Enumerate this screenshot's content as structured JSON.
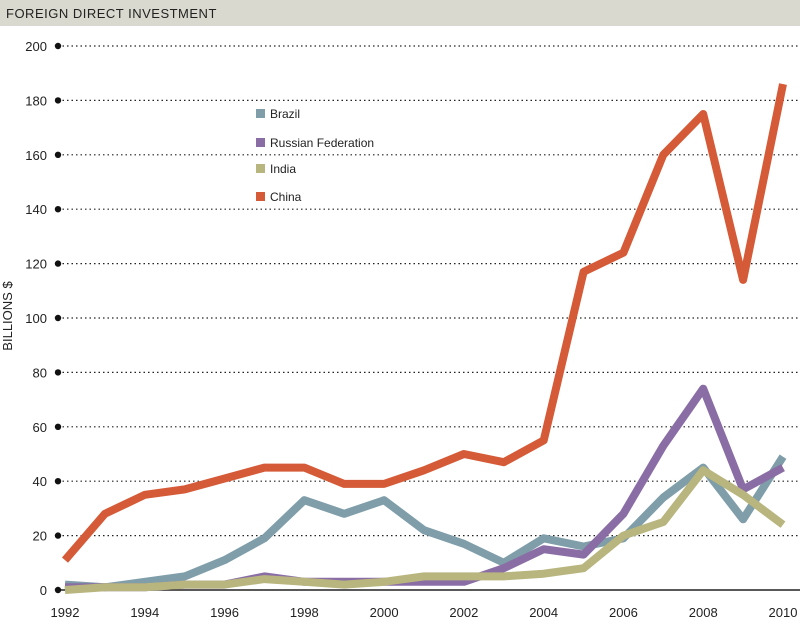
{
  "header": {
    "title": "FOREIGN DIRECT INVESTMENT"
  },
  "chart_data": {
    "type": "line",
    "title": "",
    "xlabel": "",
    "ylabel": "BILLIONS $",
    "xlim": [
      1992,
      2010
    ],
    "ylim": [
      0,
      200
    ],
    "xticks": [
      "1992",
      "1994",
      "1996",
      "1998",
      "2000",
      "2002",
      "2004",
      "2006",
      "2008",
      "2010"
    ],
    "yticks": [
      "0",
      "20",
      "40",
      "60",
      "80",
      "100",
      "120",
      "140",
      "160",
      "180",
      "200"
    ],
    "grid": "horizontal dotted",
    "legend_position": "top-left",
    "x": [
      1992,
      1993,
      1994,
      1995,
      1996,
      1997,
      1998,
      1999,
      2000,
      2001,
      2002,
      2003,
      2004,
      2005,
      2006,
      2007,
      2008,
      2009,
      2010
    ],
    "series": [
      {
        "name": "Brazil",
        "color": "#7f9ea9",
        "values": [
          2,
          1,
          3,
          5,
          11,
          19,
          33,
          28,
          33,
          22,
          17,
          10,
          19,
          16,
          19,
          34,
          45,
          26,
          49
        ]
      },
      {
        "name": "Russian Federation",
        "color": "#8a6da5",
        "values": [
          1,
          1,
          1,
          2,
          2,
          5,
          3,
          3,
          3,
          3,
          3,
          8,
          15,
          13,
          28,
          53,
          74,
          37,
          45
        ]
      },
      {
        "name": "India",
        "color": "#b8b57e",
        "values": [
          0,
          1,
          1,
          2,
          2,
          4,
          3,
          2,
          3,
          5,
          5,
          5,
          6,
          8,
          20,
          25,
          44,
          35,
          24
        ]
      },
      {
        "name": "China",
        "color": "#d55a37",
        "values": [
          11,
          28,
          35,
          37,
          41,
          45,
          45,
          39,
          39,
          44,
          50,
          47,
          55,
          117,
          124,
          160,
          175,
          114,
          186
        ]
      }
    ]
  }
}
